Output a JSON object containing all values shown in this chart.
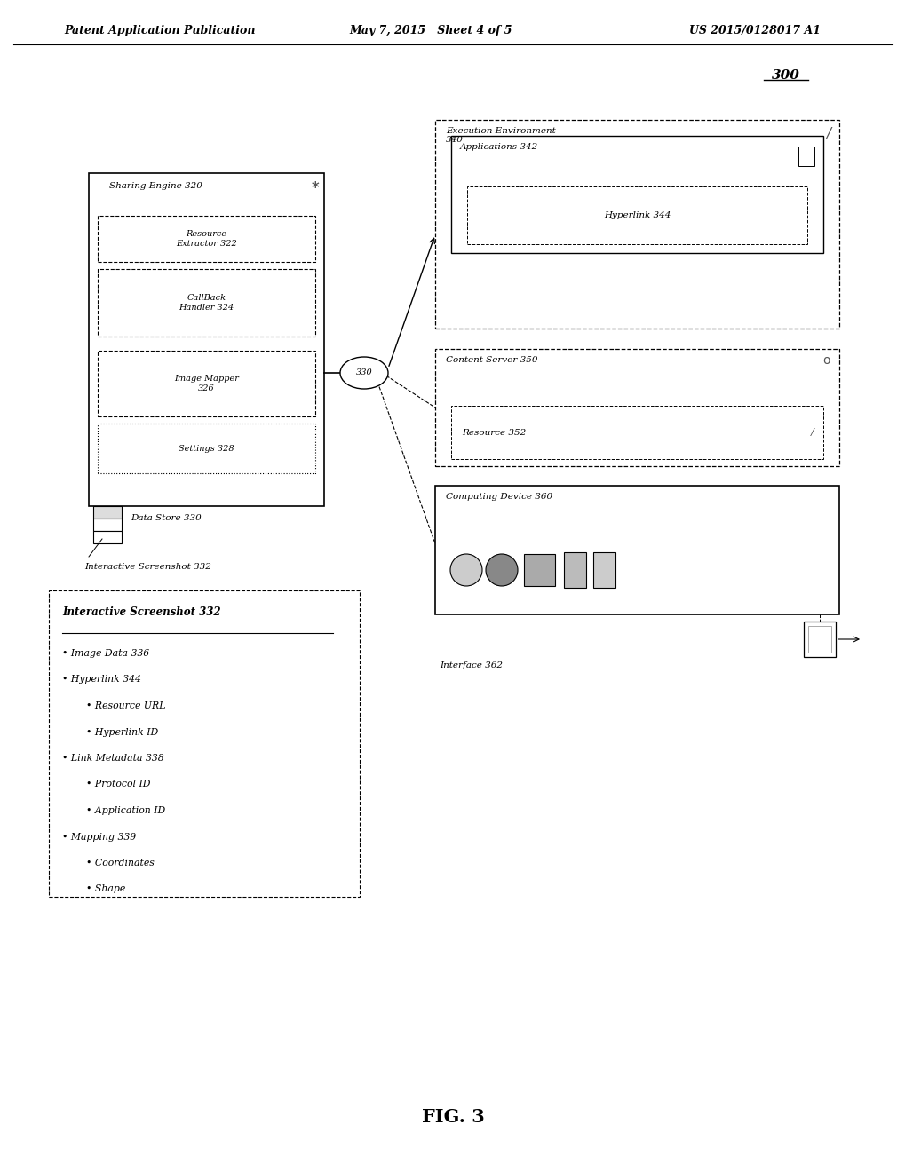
{
  "header_left": "Patent Application Publication",
  "header_mid": "May 7, 2015   Sheet 4 of 5",
  "header_right": "US 2015/0128017 A1",
  "fig_label": "FIG. 3",
  "diagram_number": "300",
  "node_number": "330",
  "bg_color": "#ffffff",
  "text_color": "#000000",
  "sharing_engine_title": "Sharing Engine 320",
  "se_items": [
    "Resource\nExtractor 322",
    "CallBack\nHandler 324",
    "Image Mapper\n326",
    "Settings 328"
  ],
  "se_item_styles": [
    "dashed",
    "dashed",
    "dashed",
    "dotted"
  ],
  "ee_title": "Execution Environment\n340",
  "ee_sub": "Applications 342",
  "ee_inner": "Hyperlink 344",
  "cs_title": "Content Server 350",
  "cs_inner": "Resource 352",
  "cd_title": "Computing Device 360",
  "cd_inner": "Interface 362",
  "data_store": "Data Store 330",
  "screenshot_ref": "Interactive Screenshot 332",
  "legend_title": "Interactive Screenshot 332",
  "legend_items": [
    {
      "text": "Image Data 336",
      "level": 0
    },
    {
      "text": "Hyperlink 344",
      "level": 0
    },
    {
      "text": "Resource URL",
      "level": 1
    },
    {
      "text": "Hyperlink ID",
      "level": 1
    },
    {
      "text": "Link Metadata 338",
      "level": 0
    },
    {
      "text": "Protocol ID",
      "level": 1
    },
    {
      "text": "Application ID",
      "level": 1
    },
    {
      "text": "Mapping 339",
      "level": 0
    },
    {
      "text": "Coordinates",
      "level": 1
    },
    {
      "text": "Shape",
      "level": 1
    }
  ]
}
